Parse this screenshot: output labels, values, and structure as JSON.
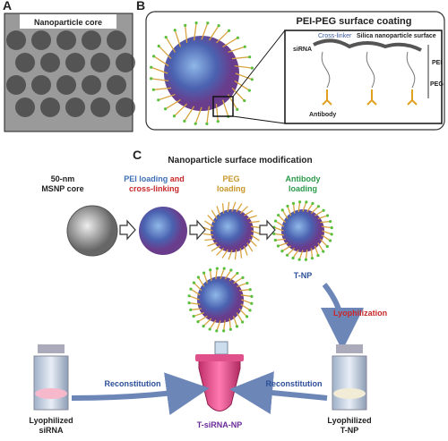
{
  "panel_a": {
    "letter": "A",
    "title": "Nanoparticle core"
  },
  "panel_b": {
    "letter": "B",
    "title": "PEI-PEG surface coating",
    "labels": {
      "cross_linker": "Cross-linker",
      "silica_surface": "Silica nanoparticle surface",
      "sirna": "siRNA",
      "pei": "PEI",
      "peg": "PEG",
      "antibody": "Antibody"
    }
  },
  "panel_c": {
    "letter": "C",
    "title": "Nanoparticle surface modification",
    "steps": {
      "core": [
        "50-nm",
        "MSNP core"
      ],
      "pei": {
        "line1_blue": "PEI loading",
        "line1_red": "and",
        "line2": "cross-linking"
      },
      "peg": [
        "PEG",
        "loading"
      ],
      "antibody": [
        "Antibody",
        "loading"
      ]
    },
    "tnp": "T-NP",
    "lyophilization": "Lyophilization",
    "reconstitution_left": "Reconstitution",
    "reconstitution_right": "Reconstitution",
    "vial_left": [
      "Lyophilized",
      "siRNA"
    ],
    "tube": "T-siRNA-NP",
    "vial_right": [
      "Lyophilized",
      "T-NP"
    ]
  }
}
